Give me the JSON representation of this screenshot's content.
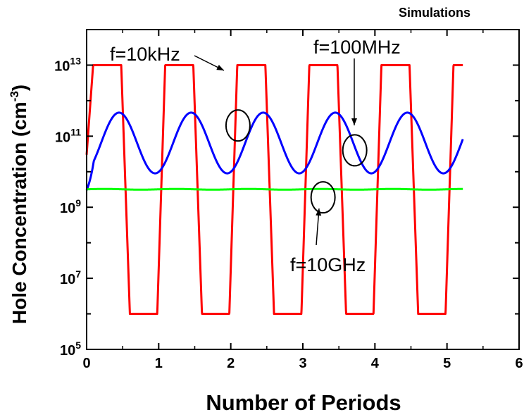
{
  "chart_data": {
    "type": "line",
    "title": "Simulations",
    "xlabel": "Number of Periods",
    "ylabel_main": "Hole Concentration (cm",
    "ylabel_sup": "-3",
    "ylabel_close": ")",
    "x_scale": "linear",
    "y_scale": "log",
    "xlim": [
      0,
      6
    ],
    "ylim": [
      100000,
      100000000000000.0
    ],
    "grid": false,
    "x_ticks": [
      0,
      1,
      2,
      3,
      4,
      5,
      6
    ],
    "x_tick_labels": [
      "0",
      "1",
      "2",
      "3",
      "4",
      "5",
      "6"
    ],
    "y_tick_labels": [
      {
        "value": 100000,
        "base": "10",
        "exp": "5"
      },
      {
        "value": 10000000,
        "base": "10",
        "exp": "7"
      },
      {
        "value": 1000000000,
        "base": "10",
        "exp": "9"
      },
      {
        "value": 100000000000,
        "base": "10",
        "exp": "11"
      },
      {
        "value": 10000000000000,
        "base": "10",
        "exp": "13"
      }
    ],
    "series": [
      {
        "label": "f=10kHz",
        "color": "#ff0000",
        "waveform": "square",
        "period": 1,
        "x_max": 5.22,
        "high": 10000000000000.0,
        "low": 1000000,
        "high_interval": [
          0.09,
          0.48
        ],
        "low_interval": [
          0.6,
          0.98
        ],
        "start": 30000000000
      },
      {
        "label": "f=100MHz",
        "color": "#0000ff",
        "waveform": "sine",
        "period": 1,
        "x_max": 5.22,
        "peak": 460000000000,
        "trough": 9000000000,
        "peak_at": 0.45,
        "start": 3000000000
      },
      {
        "label": "f=10GHz",
        "color": "#00ff00",
        "waveform": "flat",
        "x_max": 5.22,
        "value": 3200000000
      }
    ],
    "annotations": [
      {
        "text": "f=10kHz",
        "series": "f=10kHz",
        "circle_at": [
          2.1,
          200000000000.0
        ]
      },
      {
        "text": "f=100MHz",
        "series": "f=100MHz",
        "circle_at": [
          3.72,
          40000000000.0
        ]
      },
      {
        "text": "f=10GHz",
        "series": "f=10GHz",
        "circle_at": [
          3.28,
          1900000000.0
        ]
      }
    ]
  }
}
